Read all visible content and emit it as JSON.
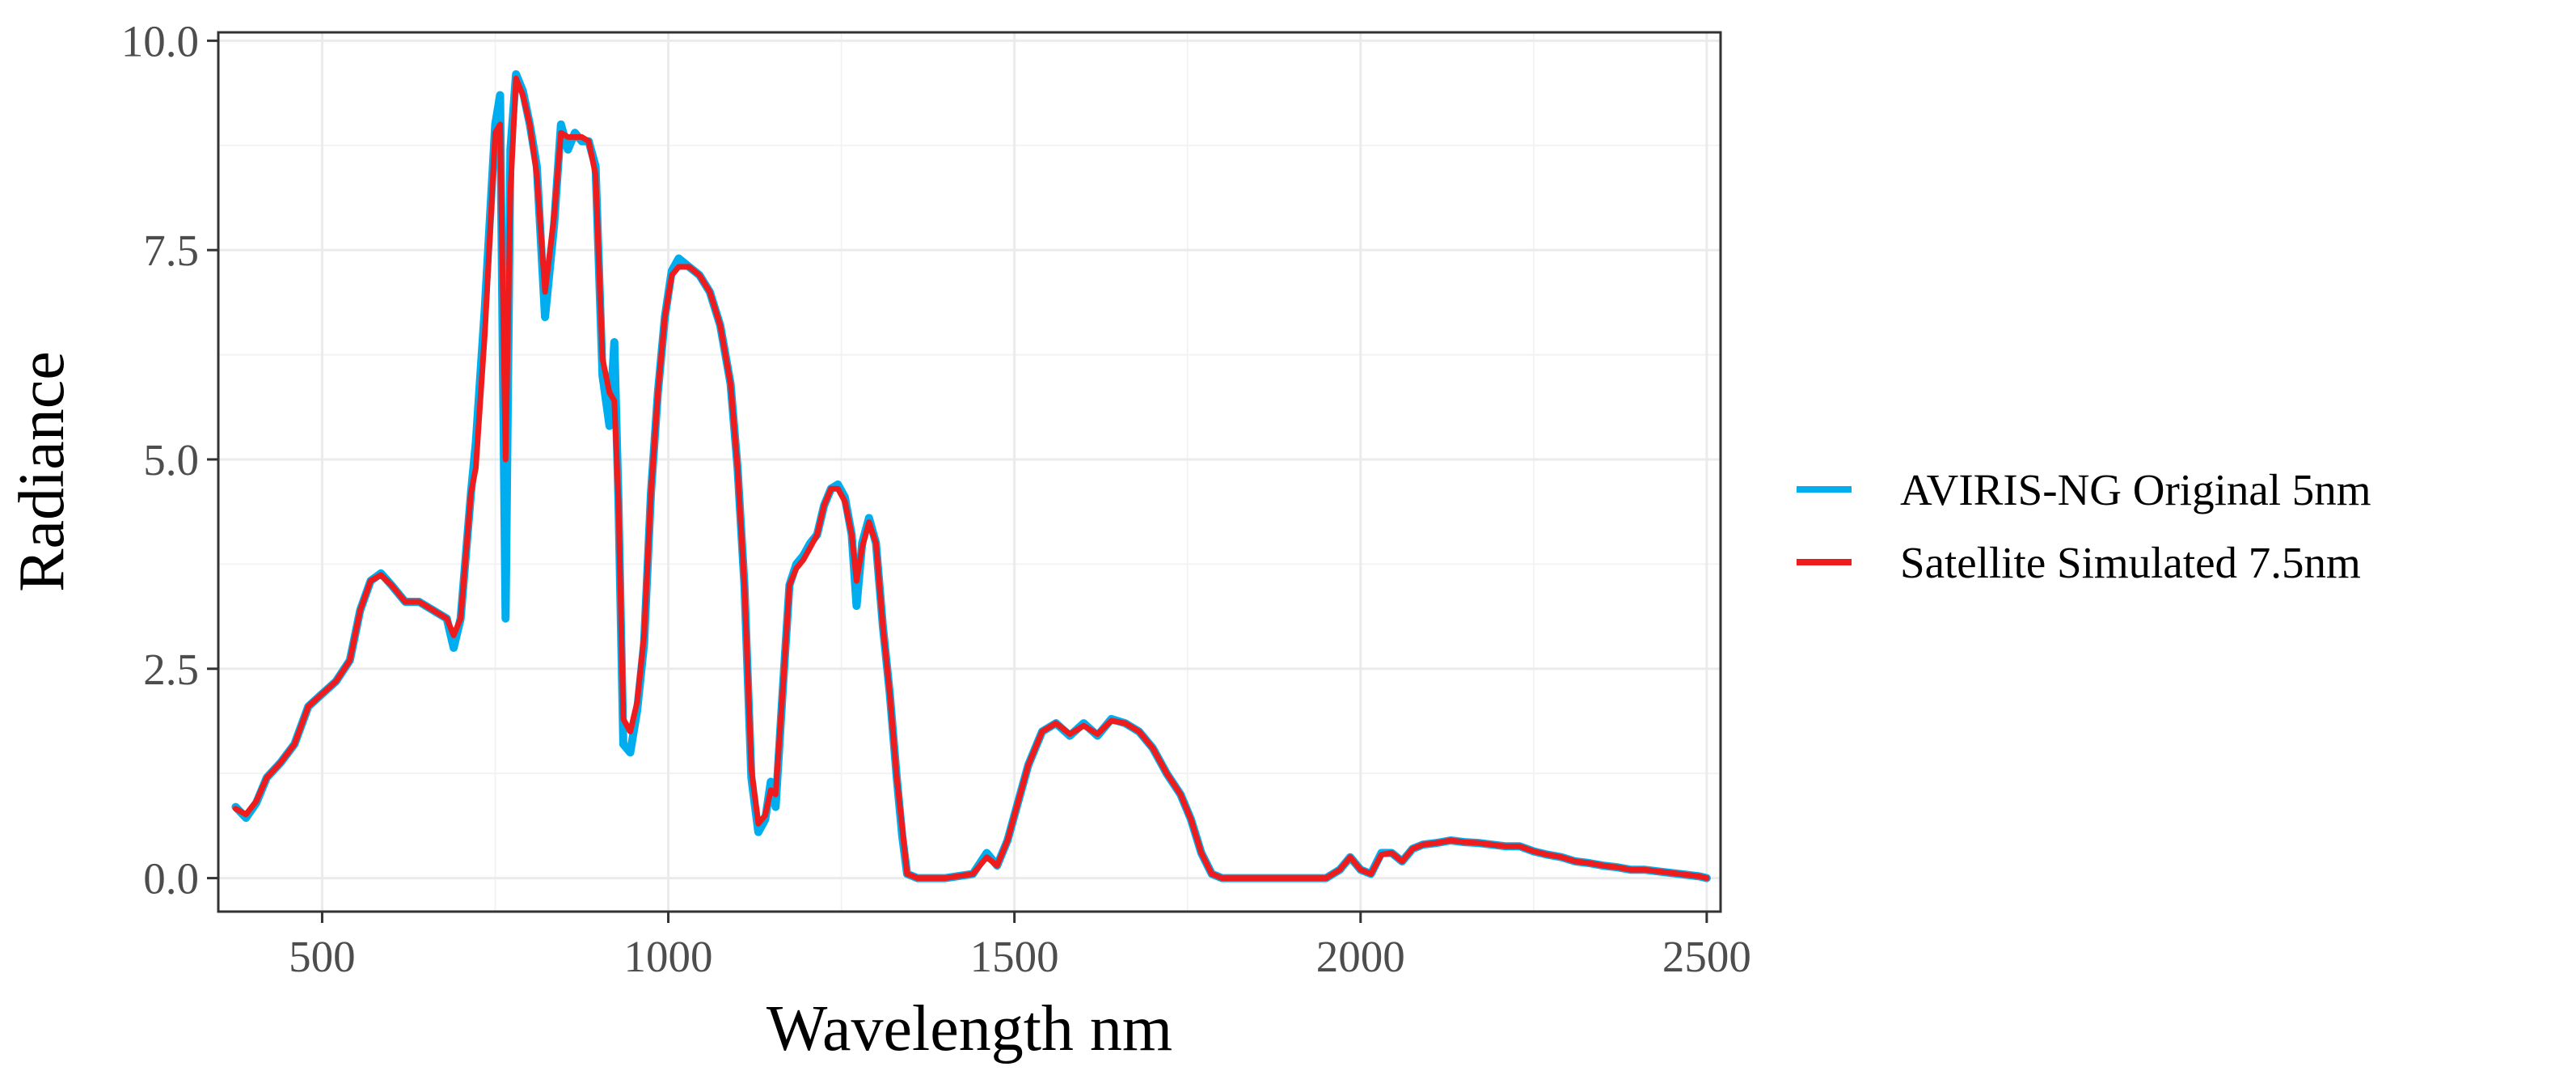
{
  "chart_data": {
    "type": "line",
    "title": "",
    "xlabel": "Wavelength nm",
    "ylabel": "Radiance",
    "xlim": [
      350,
      2520
    ],
    "ylim": [
      -0.4,
      10.1
    ],
    "x_ticks": [
      500,
      1000,
      1500,
      2000,
      2500
    ],
    "y_ticks": [
      0.0,
      2.5,
      5.0,
      7.5,
      10.0
    ],
    "x_tick_labels": [
      "500",
      "1000",
      "1500",
      "2000",
      "2500"
    ],
    "y_tick_labels": [
      "0.0",
      "2.5",
      "5.0",
      "7.5",
      "10.0"
    ],
    "grid": true,
    "legend_position": "right",
    "series": [
      {
        "name": "AVIRIS-NG Original 5nm",
        "color": "#00AEEF",
        "points": [
          [
            375,
            0.85
          ],
          [
            390,
            0.72
          ],
          [
            405,
            0.9
          ],
          [
            420,
            1.2
          ],
          [
            440,
            1.38
          ],
          [
            460,
            1.6
          ],
          [
            480,
            2.05
          ],
          [
            500,
            2.2
          ],
          [
            520,
            2.35
          ],
          [
            540,
            2.6
          ],
          [
            555,
            3.2
          ],
          [
            570,
            3.55
          ],
          [
            585,
            3.64
          ],
          [
            600,
            3.5
          ],
          [
            620,
            3.3
          ],
          [
            640,
            3.3
          ],
          [
            660,
            3.2
          ],
          [
            680,
            3.1
          ],
          [
            690,
            2.75
          ],
          [
            700,
            3.1
          ],
          [
            715,
            4.6
          ],
          [
            722,
            5.2
          ],
          [
            735,
            6.8
          ],
          [
            750,
            9.0
          ],
          [
            757,
            9.35
          ],
          [
            765,
            3.1
          ],
          [
            772,
            8.7
          ],
          [
            780,
            9.6
          ],
          [
            790,
            9.4
          ],
          [
            800,
            9.0
          ],
          [
            810,
            8.5
          ],
          [
            822,
            6.7
          ],
          [
            835,
            7.8
          ],
          [
            845,
            9.0
          ],
          [
            855,
            8.7
          ],
          [
            865,
            8.9
          ],
          [
            875,
            8.8
          ],
          [
            885,
            8.8
          ],
          [
            895,
            8.5
          ],
          [
            905,
            6.0
          ],
          [
            915,
            5.4
          ],
          [
            922,
            6.4
          ],
          [
            928,
            4.5
          ],
          [
            935,
            1.6
          ],
          [
            945,
            1.5
          ],
          [
            955,
            2.0
          ],
          [
            965,
            2.8
          ],
          [
            975,
            4.6
          ],
          [
            985,
            5.8
          ],
          [
            995,
            6.7
          ],
          [
            1005,
            7.25
          ],
          [
            1015,
            7.4
          ],
          [
            1030,
            7.3
          ],
          [
            1045,
            7.2
          ],
          [
            1060,
            7.0
          ],
          [
            1075,
            6.6
          ],
          [
            1090,
            5.9
          ],
          [
            1100,
            4.9
          ],
          [
            1110,
            3.5
          ],
          [
            1120,
            1.2
          ],
          [
            1130,
            0.55
          ],
          [
            1140,
            0.7
          ],
          [
            1148,
            1.15
          ],
          [
            1155,
            0.85
          ],
          [
            1165,
            2.2
          ],
          [
            1175,
            3.5
          ],
          [
            1185,
            3.75
          ],
          [
            1195,
            3.85
          ],
          [
            1205,
            4.0
          ],
          [
            1215,
            4.1
          ],
          [
            1225,
            4.45
          ],
          [
            1235,
            4.65
          ],
          [
            1245,
            4.7
          ],
          [
            1255,
            4.55
          ],
          [
            1265,
            4.1
          ],
          [
            1272,
            3.25
          ],
          [
            1280,
            4.0
          ],
          [
            1290,
            4.3
          ],
          [
            1300,
            4.0
          ],
          [
            1310,
            3.0
          ],
          [
            1320,
            2.2
          ],
          [
            1330,
            1.2
          ],
          [
            1338,
            0.5
          ],
          [
            1345,
            0.05
          ],
          [
            1360,
            0.0
          ],
          [
            1400,
            0.0
          ],
          [
            1440,
            0.05
          ],
          [
            1460,
            0.3
          ],
          [
            1475,
            0.15
          ],
          [
            1490,
            0.45
          ],
          [
            1505,
            0.9
          ],
          [
            1520,
            1.35
          ],
          [
            1540,
            1.75
          ],
          [
            1560,
            1.85
          ],
          [
            1580,
            1.7
          ],
          [
            1600,
            1.85
          ],
          [
            1620,
            1.7
          ],
          [
            1640,
            1.9
          ],
          [
            1660,
            1.85
          ],
          [
            1680,
            1.75
          ],
          [
            1700,
            1.55
          ],
          [
            1720,
            1.25
          ],
          [
            1740,
            1.0
          ],
          [
            1755,
            0.7
          ],
          [
            1770,
            0.3
          ],
          [
            1785,
            0.05
          ],
          [
            1800,
            0.0
          ],
          [
            1850,
            0.0
          ],
          [
            1900,
            0.0
          ],
          [
            1950,
            0.0
          ],
          [
            1970,
            0.1
          ],
          [
            1985,
            0.25
          ],
          [
            2000,
            0.1
          ],
          [
            2015,
            0.05
          ],
          [
            2030,
            0.3
          ],
          [
            2045,
            0.3
          ],
          [
            2060,
            0.2
          ],
          [
            2075,
            0.35
          ],
          [
            2090,
            0.4
          ],
          [
            2110,
            0.42
          ],
          [
            2130,
            0.45
          ],
          [
            2150,
            0.43
          ],
          [
            2170,
            0.42
          ],
          [
            2190,
            0.4
          ],
          [
            2210,
            0.38
          ],
          [
            2230,
            0.38
          ],
          [
            2250,
            0.32
          ],
          [
            2270,
            0.28
          ],
          [
            2290,
            0.25
          ],
          [
            2310,
            0.2
          ],
          [
            2330,
            0.18
          ],
          [
            2350,
            0.15
          ],
          [
            2370,
            0.13
          ],
          [
            2390,
            0.1
          ],
          [
            2410,
            0.1
          ],
          [
            2430,
            0.08
          ],
          [
            2450,
            0.06
          ],
          [
            2470,
            0.04
          ],
          [
            2490,
            0.02
          ],
          [
            2500,
            0.0
          ]
        ]
      },
      {
        "name": "Satellite Simulated 7.5nm",
        "color": "#EE1C1C",
        "points": [
          [
            375,
            0.83
          ],
          [
            390,
            0.76
          ],
          [
            405,
            0.92
          ],
          [
            420,
            1.2
          ],
          [
            440,
            1.38
          ],
          [
            460,
            1.6
          ],
          [
            480,
            2.05
          ],
          [
            500,
            2.2
          ],
          [
            520,
            2.35
          ],
          [
            540,
            2.6
          ],
          [
            555,
            3.2
          ],
          [
            570,
            3.55
          ],
          [
            585,
            3.62
          ],
          [
            600,
            3.5
          ],
          [
            620,
            3.3
          ],
          [
            640,
            3.3
          ],
          [
            660,
            3.2
          ],
          [
            680,
            3.1
          ],
          [
            690,
            2.9
          ],
          [
            700,
            3.1
          ],
          [
            715,
            4.6
          ],
          [
            722,
            4.9
          ],
          [
            735,
            6.5
          ],
          [
            750,
            8.9
          ],
          [
            757,
            9.0
          ],
          [
            765,
            5.0
          ],
          [
            772,
            8.2
          ],
          [
            780,
            9.55
          ],
          [
            790,
            9.35
          ],
          [
            800,
            9.0
          ],
          [
            810,
            8.4
          ],
          [
            822,
            7.0
          ],
          [
            835,
            7.9
          ],
          [
            845,
            8.9
          ],
          [
            855,
            8.85
          ],
          [
            865,
            8.85
          ],
          [
            875,
            8.85
          ],
          [
            885,
            8.8
          ],
          [
            895,
            8.4
          ],
          [
            905,
            6.2
          ],
          [
            915,
            5.8
          ],
          [
            922,
            5.7
          ],
          [
            928,
            4.5
          ],
          [
            935,
            1.9
          ],
          [
            945,
            1.75
          ],
          [
            955,
            2.1
          ],
          [
            965,
            2.9
          ],
          [
            975,
            4.6
          ],
          [
            985,
            5.8
          ],
          [
            995,
            6.7
          ],
          [
            1005,
            7.2
          ],
          [
            1015,
            7.3
          ],
          [
            1030,
            7.3
          ],
          [
            1045,
            7.2
          ],
          [
            1060,
            7.0
          ],
          [
            1075,
            6.6
          ],
          [
            1090,
            5.9
          ],
          [
            1100,
            4.9
          ],
          [
            1110,
            3.5
          ],
          [
            1120,
            1.3
          ],
          [
            1130,
            0.65
          ],
          [
            1140,
            0.75
          ],
          [
            1148,
            1.05
          ],
          [
            1155,
            1.0
          ],
          [
            1165,
            2.2
          ],
          [
            1175,
            3.5
          ],
          [
            1185,
            3.7
          ],
          [
            1195,
            3.8
          ],
          [
            1205,
            3.95
          ],
          [
            1215,
            4.1
          ],
          [
            1225,
            4.45
          ],
          [
            1235,
            4.65
          ],
          [
            1245,
            4.65
          ],
          [
            1255,
            4.5
          ],
          [
            1265,
            4.1
          ],
          [
            1272,
            3.55
          ],
          [
            1280,
            3.95
          ],
          [
            1290,
            4.25
          ],
          [
            1300,
            4.0
          ],
          [
            1310,
            3.0
          ],
          [
            1320,
            2.2
          ],
          [
            1330,
            1.2
          ],
          [
            1338,
            0.6
          ],
          [
            1345,
            0.05
          ],
          [
            1360,
            0.0
          ],
          [
            1400,
            0.0
          ],
          [
            1440,
            0.05
          ],
          [
            1460,
            0.25
          ],
          [
            1475,
            0.15
          ],
          [
            1490,
            0.45
          ],
          [
            1505,
            0.9
          ],
          [
            1520,
            1.35
          ],
          [
            1540,
            1.75
          ],
          [
            1560,
            1.85
          ],
          [
            1580,
            1.72
          ],
          [
            1600,
            1.82
          ],
          [
            1620,
            1.72
          ],
          [
            1640,
            1.88
          ],
          [
            1660,
            1.85
          ],
          [
            1680,
            1.75
          ],
          [
            1700,
            1.55
          ],
          [
            1720,
            1.25
          ],
          [
            1740,
            1.0
          ],
          [
            1755,
            0.7
          ],
          [
            1770,
            0.3
          ],
          [
            1785,
            0.05
          ],
          [
            1800,
            0.0
          ],
          [
            1850,
            0.0
          ],
          [
            1900,
            0.0
          ],
          [
            1950,
            0.0
          ],
          [
            1970,
            0.1
          ],
          [
            1985,
            0.25
          ],
          [
            2000,
            0.1
          ],
          [
            2015,
            0.05
          ],
          [
            2030,
            0.28
          ],
          [
            2045,
            0.3
          ],
          [
            2060,
            0.2
          ],
          [
            2075,
            0.35
          ],
          [
            2090,
            0.4
          ],
          [
            2110,
            0.42
          ],
          [
            2130,
            0.45
          ],
          [
            2150,
            0.43
          ],
          [
            2170,
            0.42
          ],
          [
            2190,
            0.4
          ],
          [
            2210,
            0.38
          ],
          [
            2230,
            0.38
          ],
          [
            2250,
            0.32
          ],
          [
            2270,
            0.28
          ],
          [
            2290,
            0.25
          ],
          [
            2310,
            0.2
          ],
          [
            2330,
            0.18
          ],
          [
            2350,
            0.15
          ],
          [
            2370,
            0.13
          ],
          [
            2390,
            0.1
          ],
          [
            2410,
            0.1
          ],
          [
            2430,
            0.08
          ],
          [
            2450,
            0.06
          ],
          [
            2470,
            0.04
          ],
          [
            2490,
            0.02
          ],
          [
            2500,
            0.0
          ]
        ]
      }
    ]
  }
}
